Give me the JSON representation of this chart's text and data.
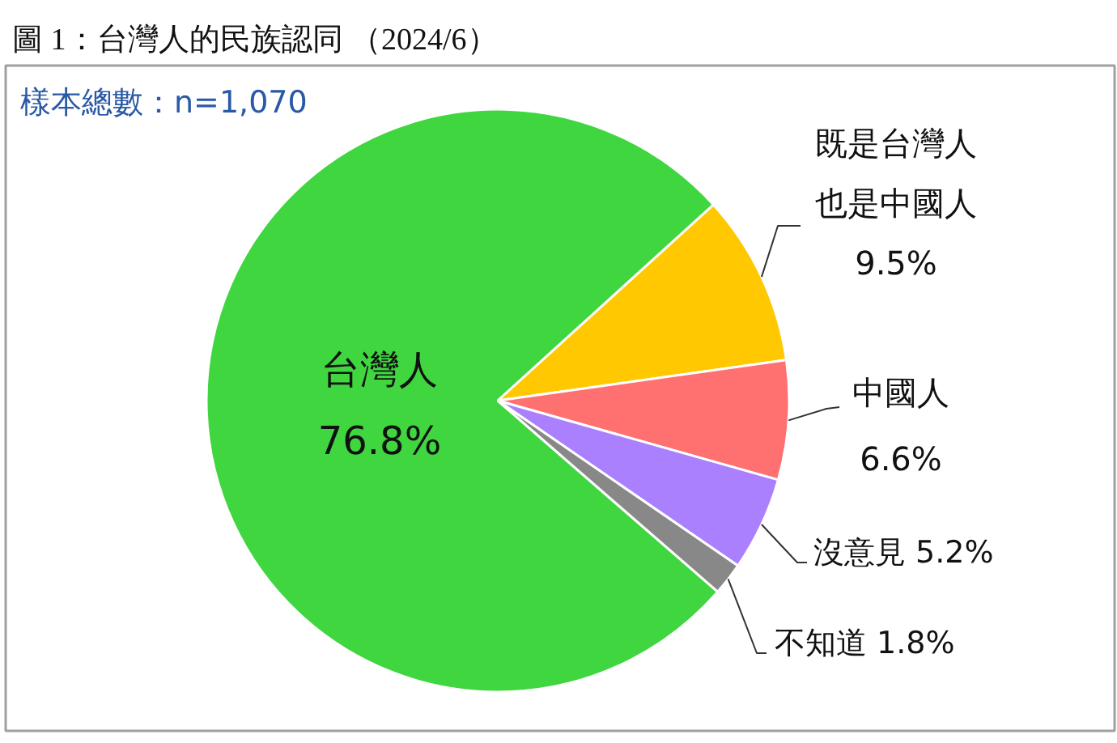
{
  "chart_data": {
    "type": "pie",
    "title": "圖 1：台灣人的民族認同 （2024/6）",
    "annotations": [
      "樣本總數：n=1,070"
    ],
    "categories": [
      "台灣人",
      "既是台灣人也是中國人",
      "中國人",
      "沒意見",
      "不知道"
    ],
    "values": [
      76.8,
      9.5,
      6.6,
      5.2,
      1.8
    ],
    "colors": [
      "#40d640",
      "#ffc800",
      "#ff7070",
      "#aa80ff",
      "#888888"
    ],
    "value_labels": [
      "76.8%",
      "9.5%",
      "6.6%",
      "5.2%",
      "1.8%"
    ]
  }
}
